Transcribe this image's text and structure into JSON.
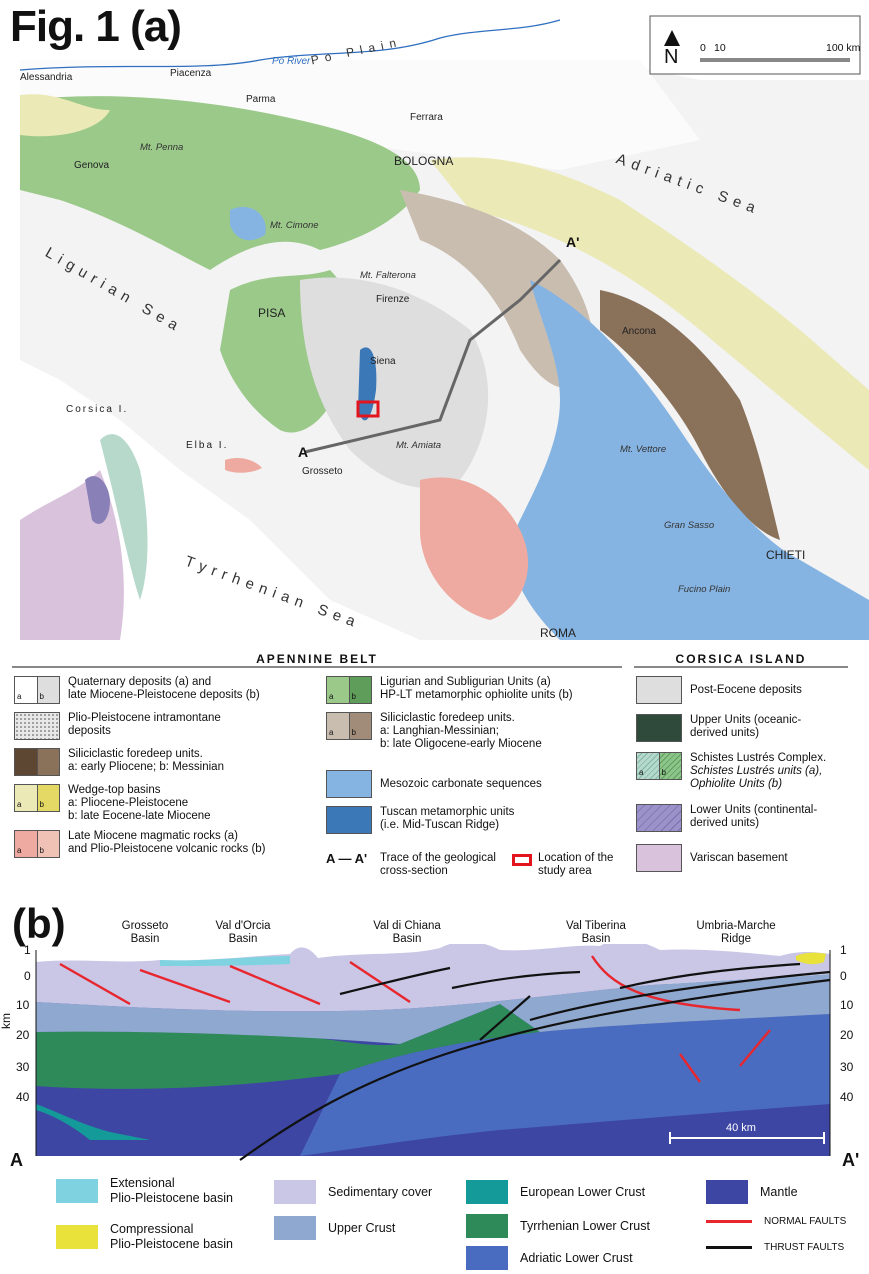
{
  "figure": {
    "title": "Fig. 1 (a)",
    "part_b": "(b)"
  },
  "map": {
    "scale": {
      "n": "N",
      "z": "0",
      "m": "10",
      "end": "100 km"
    },
    "rivers": {
      "po_river": "Po River",
      "po_plain": "Po Plain"
    },
    "seas": {
      "adriatic": "Adriatic Sea",
      "ligurian": "Ligurian Sea",
      "tyrrhenian": "Tyrrhenian Sea"
    },
    "cities": {
      "alessandria": "Alessandria",
      "piacenza": "Piacenza",
      "parma": "Parma",
      "ferrara": "Ferrara",
      "genova": "Genova",
      "bologna": "BOLOGNA",
      "pisa": "PISA",
      "firenze": "Firenze",
      "siena": "Siena",
      "ancona": "Ancona",
      "grosseto": "Grosseto",
      "chieti": "CHIETI",
      "roma": "ROMA"
    },
    "mountains": {
      "penna": "Mt. Penna",
      "cimone": "Mt. Cimone",
      "falterona": "Mt. Falterona",
      "amiata": "Mt. Amiata",
      "vettore": "Mt. Vettore",
      "gran_sasso": "Gran Sasso",
      "fucino": "Fucino Plain"
    },
    "islands": {
      "corsica": "Corsica I.",
      "elba": "Elba I."
    },
    "section": {
      "a": "A",
      "a_prime": "A'"
    },
    "colors": {
      "sea": "#ffffff",
      "land_grey": "#dedede",
      "ligurian": "#9bc98a",
      "ligurian_dark": "#5f9e5a",
      "foredeep_brown": "#a08c78",
      "foredeep_beige": "#c9bdb0",
      "wedge": "#ebe9b5",
      "carbonate": "#86b4e2",
      "tuscan": "#3a78b8",
      "magmatic": "#eeaaa0",
      "dark_brown": "#5d4632",
      "variscan": "#d9c3dc",
      "study_area": "#e2141e"
    }
  },
  "legend": {
    "apennine_header": "APENNINE BELT",
    "corsica_header": "CORSICA ISLAND",
    "ab_a": "a",
    "ab_b": "b",
    "items": {
      "quaternary": "Quaternary deposits (a) and\nlate Miocene-Pleistocene deposits (b)",
      "plio_intra": "Plio-Pleistocene intramontane\ndeposits",
      "sili_1": "Siliciclastic foredeep units.\na: early Pliocene; b: Messinian",
      "wedge": "Wedge-top basins\na: Pliocene-Pleistocene\nb: late Eocene-late Miocene",
      "magmatic": "Late Miocene magmatic rocks (a)\nand Plio-Pleistocene volcanic rocks (b)",
      "ligurian": "Ligurian and Subligurian Units (a)\nHP-LT metamorphic ophiolite units (b)",
      "sili_2": "Siliciclastic foredeep units.\na:  Langhian-Messinian;\nb: late Oligocene-early Miocene",
      "mesozoic": "Mesozoic carbonate sequences",
      "tuscan": "Tuscan metamorphic units\n(i.e. Mid-Tuscan Ridge)",
      "trace_symbol": "A — A'",
      "trace": "Trace of the geological\ncross-section",
      "location": "Location of the\nstudy area",
      "post_eocene": "Post-Eocene deposits",
      "upper_units": "Upper Units (oceanic-\nderived units)",
      "schistes_1": "Schistes Lustrés Complex.",
      "schistes_2": "Schistes Lustrés units (a),",
      "schistes_3": "Ophiolite Units (b)",
      "lower_units": "Lower Units (continental-\nderived units)",
      "variscan": "Variscan basement"
    }
  },
  "section": {
    "basins": [
      "Grosseto\nBasin",
      "Val d'Orcia\nBasin",
      "Val di Chiana\nBasin",
      "Val Tiberina\nBasin",
      "Umbria-Marche\nRidge"
    ],
    "axis_unit": "km",
    "ticks": [
      "1",
      "0",
      "10",
      "20",
      "30",
      "40"
    ],
    "end_a": "A",
    "end_a_prime": "A'",
    "scale_bar": "40 km",
    "colors": {
      "sedimentary": "#c9c6e6",
      "upper_crust": "#8fa8cf",
      "european_lc": "#159a9a",
      "tyrrhenian_lc": "#2f8a5a",
      "adriatic_lc": "#4a6cc0",
      "mantle": "#3d47a3",
      "extensional": "#7fd3e0",
      "compressional": "#e8e23a",
      "normal_fault": "#e8262d",
      "thrust_fault": "#111111"
    }
  },
  "section_legend": {
    "extensional": "Extensional\nPlio-Pleistocene basin",
    "compressional": "Compressional\nPlio-Pleistocene basin",
    "sedimentary": "Sedimentary cover",
    "upper_crust": "Upper Crust",
    "european": "European Lower Crust",
    "tyrrhenian": "Tyrrhenian Lower Crust",
    "adriatic": "Adriatic Lower Crust",
    "mantle": "Mantle",
    "normal": "NORMAL FAULTS",
    "thrust": "THRUST FAULTS"
  }
}
